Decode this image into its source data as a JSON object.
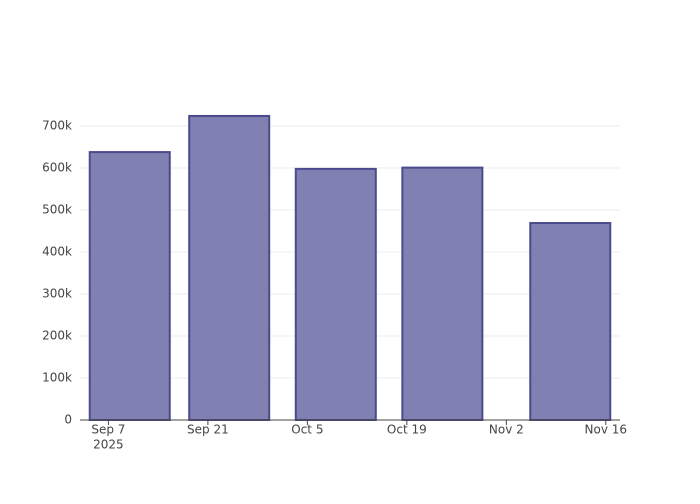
{
  "chart_data": {
    "type": "bar",
    "x": [
      "2025-09-10",
      "2025-09-24",
      "2025-10-09",
      "2025-10-24",
      "2025-11-11"
    ],
    "values": [
      638000,
      724000,
      598000,
      601000,
      469000
    ],
    "color": "#8080b2",
    "edge_color": "#4b4a8c",
    "xlim": [
      "2025-09-03",
      "2025-11-18"
    ],
    "xticks": [
      {
        "value": "2025-09-07",
        "label": "Sep 7"
      },
      {
        "value": "2025-09-21",
        "label": "Sep 21"
      },
      {
        "value": "2025-10-05",
        "label": "Oct 5"
      },
      {
        "value": "2025-10-19",
        "label": "Oct 19"
      },
      {
        "value": "2025-11-02",
        "label": "Nov 2"
      },
      {
        "value": "2025-11-16",
        "label": "Nov 16"
      }
    ],
    "xtick_year": "2025",
    "ylim": [
      0,
      762000
    ],
    "yticks": [
      0,
      {
        "value": 100000,
        "label": "100k"
      },
      {
        "value": 200000,
        "label": "200k"
      },
      {
        "value": 300000,
        "label": "300k"
      },
      {
        "value": 400000,
        "label": "400k"
      },
      {
        "value": 500000,
        "label": "500k"
      },
      {
        "value": 600000,
        "label": "600k"
      },
      {
        "value": 700000,
        "label": "700k"
      }
    ],
    "grid": true
  }
}
